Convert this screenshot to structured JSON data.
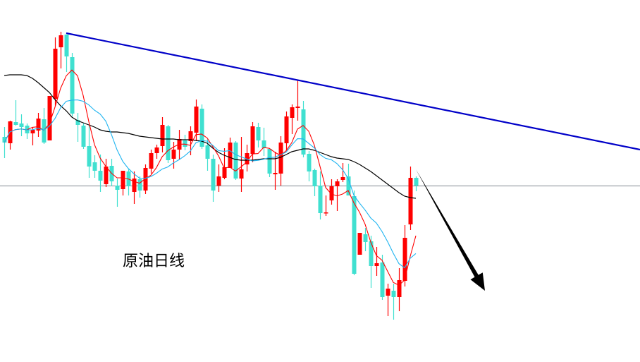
{
  "label": "原油日线",
  "colors": {
    "up": "#ff0000",
    "down": "#40e0d0",
    "ma5": "#ff0000",
    "ma10": "#1eb4f0",
    "ma_long": "#000000",
    "trendline": "#0000c8",
    "hline": "#7f8790",
    "arrow": "#000000"
  },
  "chart_data": {
    "type": "candlestick",
    "title": "原油日线",
    "ylim": [
      54.35,
      80
    ],
    "grid": false,
    "candles_ohlc": [
      [
        70.3,
        71.0,
        68.8,
        69.9
      ],
      [
        69.85,
        71.45,
        69.4,
        71.4
      ],
      [
        71.35,
        72.9,
        71.1,
        71.15
      ],
      [
        71.25,
        71.9,
        70.35,
        71.0
      ],
      [
        71.1,
        71.25,
        70.15,
        70.55
      ],
      [
        70.55,
        71.0,
        69.7,
        70.8
      ],
      [
        70.75,
        72.0,
        70.3,
        71.6
      ],
      [
        71.55,
        72.35,
        69.8,
        69.9
      ],
      [
        70.05,
        73.2,
        70.05,
        73.2
      ],
      [
        73.0,
        77.35,
        72.5,
        76.55
      ],
      [
        76.65,
        77.75,
        75.15,
        77.5
      ],
      [
        77.55,
        77.55,
        74.9,
        76.0
      ],
      [
        75.95,
        76.25,
        71.75,
        71.95
      ],
      [
        71.5,
        72.0,
        69.95,
        71.15
      ],
      [
        71.1,
        71.25,
        69.45,
        69.6
      ],
      [
        69.65,
        71.1,
        67.4,
        68.2
      ],
      [
        68.5,
        69.0,
        67.4,
        67.9
      ],
      [
        67.9,
        69.05,
        66.4,
        67.2
      ],
      [
        66.95,
        68.75,
        66.75,
        68.2
      ],
      [
        68.25,
        68.75,
        66.8,
        67.15
      ],
      [
        66.85,
        67.35,
        65.35,
        66.55
      ],
      [
        66.6,
        67.9,
        66.15,
        67.9
      ],
      [
        67.85,
        68.0,
        66.15,
        66.8
      ],
      [
        66.4,
        67.85,
        65.55,
        67.35
      ],
      [
        67.3,
        67.5,
        66.0,
        66.5
      ],
      [
        66.5,
        68.35,
        66.25,
        68.1
      ],
      [
        68.05,
        69.4,
        67.7,
        69.15
      ],
      [
        69.15,
        69.75,
        68.75,
        69.55
      ],
      [
        69.65,
        71.7,
        69.2,
        71.15
      ],
      [
        71.05,
        71.15,
        68.45,
        68.65
      ],
      [
        68.75,
        69.95,
        68.05,
        69.4
      ],
      [
        69.4,
        70.8,
        68.7,
        70.15
      ],
      [
        70.05,
        70.45,
        69.35,
        69.6
      ],
      [
        70.0,
        71.05,
        69.0,
        70.7
      ],
      [
        70.6,
        72.95,
        70.0,
        72.45
      ],
      [
        72.3,
        72.6,
        69.45,
        69.6
      ],
      [
        69.7,
        70.15,
        67.9,
        68.75
      ],
      [
        68.75,
        69.05,
        65.7,
        66.5
      ],
      [
        66.85,
        68.35,
        66.4,
        67.5
      ],
      [
        67.4,
        69.5,
        67.3,
        68.15
      ],
      [
        68.1,
        70.25,
        68.1,
        69.9
      ],
      [
        69.9,
        70.0,
        67.25,
        67.35
      ],
      [
        67.35,
        70.3,
        66.4,
        68.0
      ],
      [
        68.35,
        69.75,
        67.85,
        69.15
      ],
      [
        69.1,
        71.35,
        68.5,
        71.05
      ],
      [
        71.0,
        71.3,
        69.55,
        70.05
      ],
      [
        70.05,
        70.95,
        68.95,
        69.5
      ],
      [
        69.45,
        69.5,
        67.45,
        67.7
      ],
      [
        67.65,
        69.25,
        66.55,
        67.75
      ],
      [
        67.7,
        70.35,
        66.85,
        69.9
      ],
      [
        69.85,
        72.1,
        69.35,
        71.75
      ],
      [
        71.65,
        72.6,
        70.5,
        72.4
      ],
      [
        72.35,
        74.35,
        71.45,
        72.45
      ],
      [
        72.25,
        72.85,
        68.85,
        69.05
      ],
      [
        69.1,
        69.3,
        67.15,
        67.85
      ],
      [
        67.95,
        68.05,
        66.1,
        66.8
      ],
      [
        66.85,
        67.85,
        64.45,
        64.9
      ],
      [
        64.9,
        66.15,
        64.7,
        64.95
      ],
      [
        65.8,
        67.3,
        65.5,
        66.8
      ],
      [
        66.8,
        67.3,
        65.05,
        67.15
      ],
      [
        67.25,
        68.45,
        67.1,
        67.45
      ],
      [
        67.5,
        68.4,
        66.15,
        66.15
      ],
      [
        66.1,
        66.5,
        60.5,
        60.6
      ],
      [
        61.95,
        63.5,
        61.95,
        63.5
      ],
      [
        63.4,
        63.85,
        62.2,
        62.85
      ],
      [
        62.9,
        63.3,
        59.6,
        61.15
      ],
      [
        61.15,
        62.5,
        60.45,
        61.35
      ],
      [
        61.4,
        61.95,
        58.75,
        58.95
      ],
      [
        59.05,
        59.9,
        57.6,
        59.55
      ],
      [
        59.4,
        59.9,
        57.35,
        58.95
      ],
      [
        58.95,
        61.0,
        57.95,
        60.15
      ],
      [
        60.1,
        64.05,
        59.7,
        63.15
      ],
      [
        64.1,
        68.2,
        63.7,
        67.4
      ],
      [
        67.4,
        67.5,
        66.45,
        66.85
      ]
    ],
    "moving_averages": [
      {
        "period": 5,
        "color": "#ff0000"
      },
      {
        "period": 10,
        "color": "#1eb4f0"
      }
    ],
    "long_ma_values": [
      74.65,
      74.7,
      74.7,
      74.7,
      74.65,
      74.45,
      74.15,
      73.8,
      73.45,
      72.95,
      72.5,
      72.15,
      71.7,
      71.45,
      71.3,
      71.15,
      71.0,
      70.8,
      70.7,
      70.65,
      70.65,
      70.6,
      70.55,
      70.45,
      70.35,
      70.3,
      70.25,
      70.2,
      70.15,
      70.15,
      70.15,
      70.1,
      70.1,
      70.1,
      70.05,
      70.0,
      69.85,
      69.5,
      69.2,
      69.0,
      68.85,
      68.7,
      68.65,
      68.65,
      68.65,
      68.7,
      68.75,
      68.75,
      68.75,
      68.85,
      69.05,
      69.25,
      69.35,
      69.45,
      69.45,
      69.35,
      69.2,
      69.05,
      68.9,
      68.8,
      68.75,
      68.7,
      68.55,
      68.35,
      68.1,
      67.85,
      67.55,
      67.25,
      66.95,
      66.65,
      66.35,
      66.1,
      66.0,
      65.95
    ],
    "trendline": {
      "from": {
        "bar": 11,
        "price": 77.65
      },
      "to": {
        "bar": 112.75,
        "price": 69.4
      }
    },
    "horizontal_line": {
      "price": 66.85
    },
    "arrow": {
      "from": {
        "bar": 73,
        "price": 68.0
      },
      "to": {
        "bar": 85.25,
        "price": 59.4
      }
    }
  }
}
